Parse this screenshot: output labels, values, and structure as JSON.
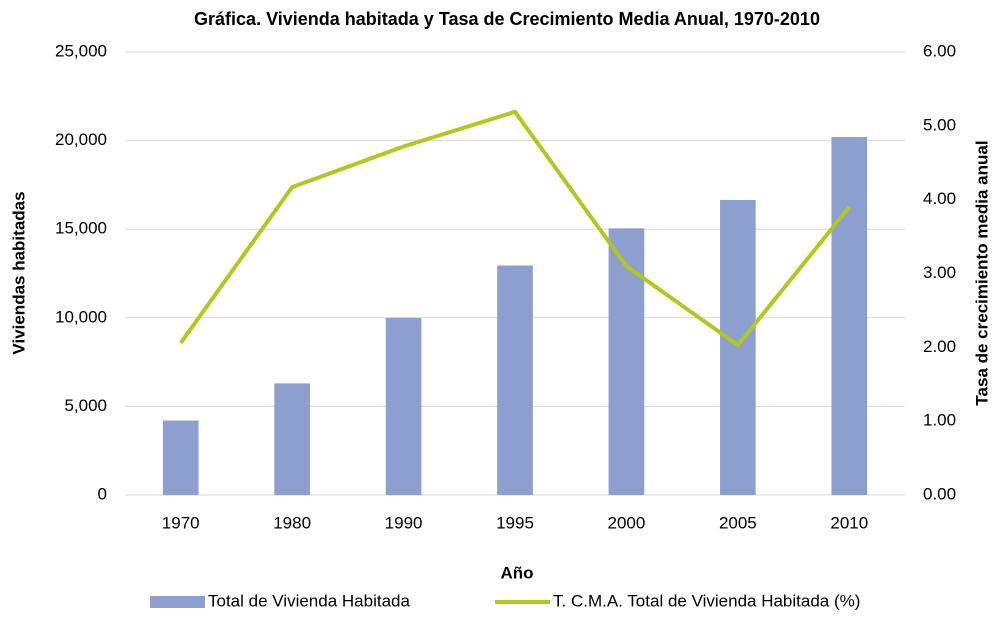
{
  "chart_data": {
    "type": "bar-line",
    "title": "Gráfica. Vivienda habitada y Tasa de Crecimiento Media Anual, 1970-2010",
    "x_label": "Año",
    "y_label": "Viviendas habitadas",
    "y2_label": "Tasa de crecimiento media anual",
    "categories": [
      "1970",
      "1980",
      "1990",
      "1995",
      "2000",
      "2005",
      "2010"
    ],
    "series": [
      {
        "name": "Total de Vivienda Habitada",
        "type": "bar",
        "color": "#8c9fcf",
        "values": [
          4200,
          6300,
          10000,
          12950,
          15050,
          16650,
          20200
        ]
      },
      {
        "name": "T. C.M.A. Total de Vivienda Habitada (%)",
        "type": "line",
        "axis": "y2",
        "color": "#b3c81e",
        "values": [
          2.06,
          4.17,
          4.72,
          5.19,
          3.1,
          2.03,
          3.9
        ]
      }
    ],
    "ylim": [
      0,
      25000
    ],
    "yticks": [
      0,
      {
        "value": 5000,
        "label": "5,000"
      },
      {
        "value": 10000,
        "label": "10,000"
      },
      {
        "value": 15000,
        "label": "15,000"
      },
      {
        "value": 20000,
        "label": "20,000"
      },
      {
        "value": 25000,
        "label": "25,000"
      }
    ],
    "y2lim": [
      0,
      6
    ],
    "y2ticks": [
      {
        "value": 0,
        "label": "0.00"
      },
      {
        "value": 1,
        "label": "1.00"
      },
      {
        "value": 2,
        "label": "2.00"
      },
      {
        "value": 3,
        "label": "3.00"
      },
      {
        "value": 4,
        "label": "4.00"
      },
      {
        "value": 5,
        "label": "5.00"
      },
      {
        "value": 6,
        "label": "6.00"
      }
    ],
    "grid": true,
    "legend": "bottom"
  }
}
